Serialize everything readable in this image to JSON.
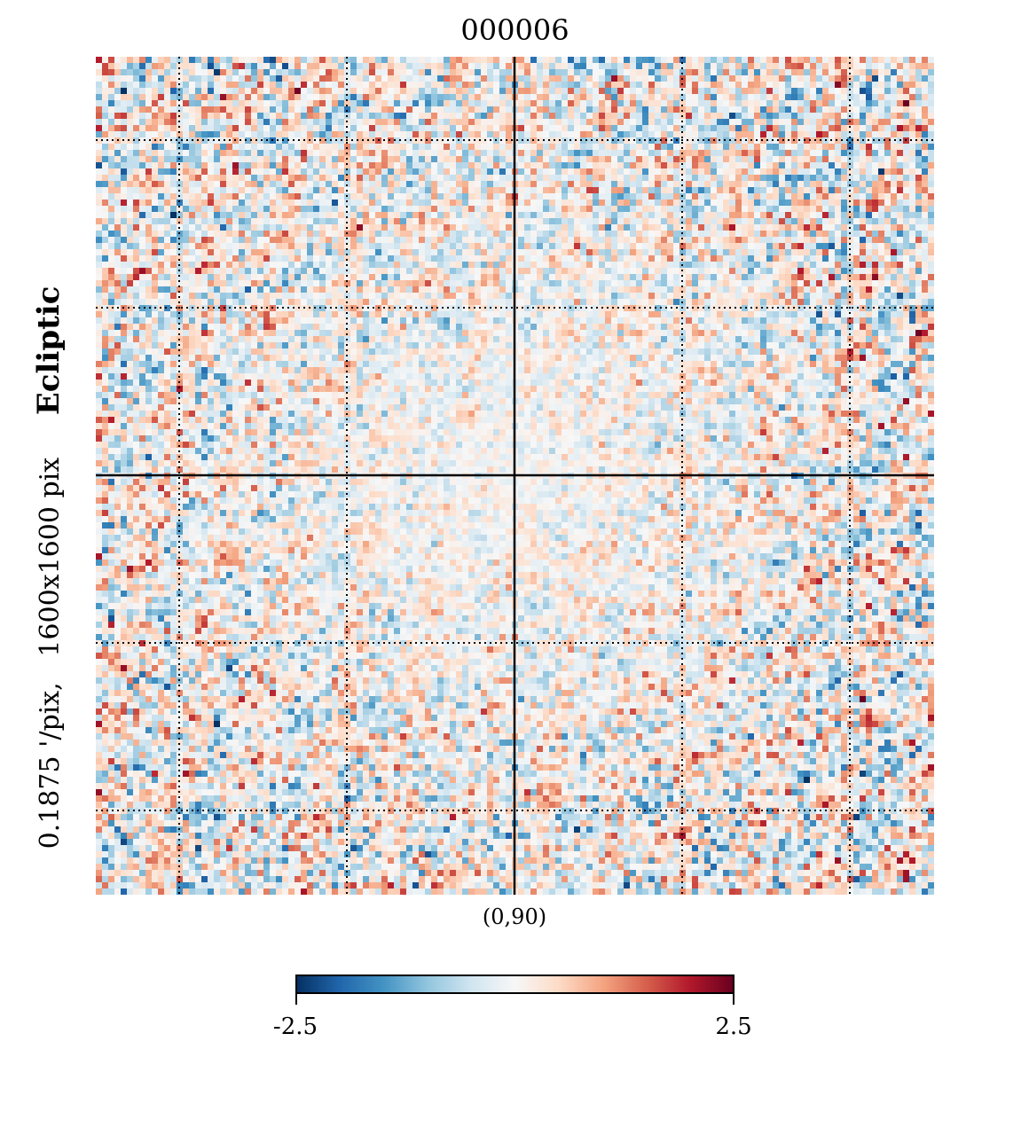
{
  "chart_data": {
    "type": "heatmap",
    "title": "000006",
    "projection_info": {
      "resolution": "0.1875 '/pix,",
      "size": "1600x1600 pix",
      "coord": "Ecliptic"
    },
    "center_label": "(0,90)",
    "colorbar": {
      "min": -2.5,
      "max": 2.5,
      "min_label": "-2.5",
      "max_label": "2.5",
      "colormap": "RdBu_r",
      "stops": [
        "#053061",
        "#2166ac",
        "#4393c3",
        "#92c5de",
        "#d1e5f0",
        "#f7f7f7",
        "#fddbc7",
        "#f4a582",
        "#d6604d",
        "#b2182b",
        "#67001f"
      ]
    },
    "graticule": "dotted",
    "axes_lines": "solid center cross"
  }
}
